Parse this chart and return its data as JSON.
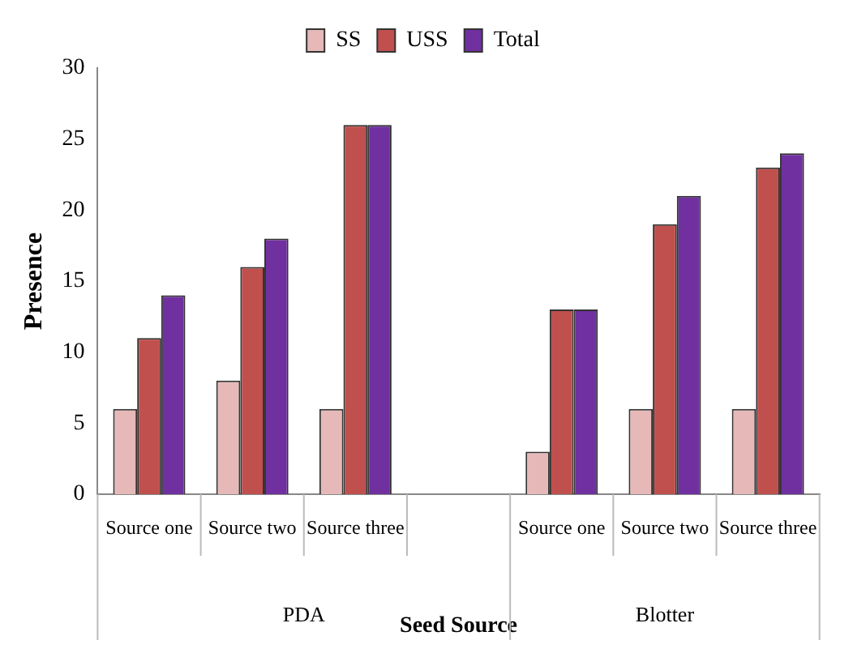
{
  "chart_data": {
    "type": "bar",
    "ylabel": "Presence",
    "xlabel": "Seed Source",
    "categories": [
      "Source one",
      "Source two",
      "Source three",
      null,
      "Source one",
      "Source two",
      "Source three"
    ],
    "series": [
      {
        "name": "SS",
        "color": "#e6b9b8",
        "values": [
          6,
          8,
          6,
          null,
          3,
          6,
          6
        ]
      },
      {
        "name": "USS",
        "color": "#c0504d",
        "values": [
          11,
          16,
          26,
          null,
          13,
          19,
          23
        ]
      },
      {
        "name": "Total",
        "color": "#7030a0",
        "values": [
          14,
          18,
          26,
          null,
          13,
          21,
          24
        ]
      }
    ],
    "ylim": [
      0,
      30
    ],
    "yticks": [
      0,
      5,
      10,
      15,
      20,
      25,
      30
    ],
    "grid": false,
    "legend": "top",
    "annotations": [
      "PDA",
      "Blotter"
    ]
  }
}
